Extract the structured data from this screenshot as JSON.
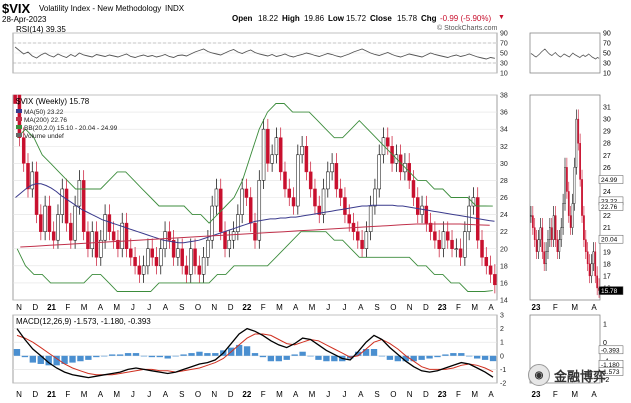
{
  "header": {
    "symbol": "$VIX",
    "name": "Volatility Index - New Methodology",
    "exchange": "INDX",
    "date": "28-Apr-2023",
    "open_label": "Open",
    "open": "18.22",
    "high_label": "High",
    "high": "19.86",
    "low_label": "Low",
    "low": "15.72",
    "close_label": "Close",
    "close": "15.78",
    "chg_label": "Chg",
    "chg": "-0.99 (-5.90%)",
    "credit": "© StockCharts.com"
  },
  "watermark": {
    "text": "金融博弈",
    "logo": "wechat-logo"
  },
  "colors": {
    "down": "#c8102e",
    "up": "#ffffff",
    "ma50": "#3a3a8c",
    "ma200": "#c0304a",
    "bb": "#3c8c3c",
    "hist": "#4a8fd0",
    "macd": "#000000",
    "signal": "#d03020",
    "rsi": "#555555"
  },
  "chart_data": [
    {
      "type": "line",
      "title": "RSI(14) 39.35",
      "series": [
        {
          "name": "RSI(14)",
          "values": [
            62,
            55,
            48,
            52,
            44,
            40,
            46,
            50,
            45,
            42,
            48,
            44,
            41,
            47,
            43,
            50,
            46,
            44,
            42,
            47,
            45,
            43,
            46,
            44,
            42,
            45,
            48,
            43,
            41,
            44,
            46,
            43,
            45,
            42,
            44,
            47,
            43,
            41,
            45,
            46,
            44,
            48,
            52,
            55,
            58,
            53,
            50,
            48,
            46,
            50,
            54,
            57,
            52,
            49,
            53,
            56,
            51,
            48,
            46,
            44,
            47,
            43,
            45,
            48,
            44,
            42,
            45,
            47,
            50,
            48,
            45,
            43,
            46,
            49,
            47,
            44,
            42,
            45,
            48,
            52,
            55,
            58,
            54,
            50,
            47,
            45,
            48,
            51,
            47,
            44,
            42,
            45,
            48,
            46,
            44,
            42,
            46,
            50,
            47,
            45,
            43,
            41,
            44,
            46,
            43,
            45,
            48,
            45,
            42,
            40,
            38,
            41,
            39.35
          ]
        }
      ],
      "ylim": [
        10,
        90
      ],
      "yticks": [
        "90",
        "70",
        "50",
        "30",
        "10"
      ],
      "ref_lines": [
        30,
        70
      ]
    },
    {
      "type": "line",
      "title": "$VIX (Weekly) 15.78",
      "legend": [
        "MA(50) 23.22",
        "MA(200) 22.76",
        "BB(20,2.0) 15.10 - 20.04 - 24.99",
        "Volume undef"
      ],
      "ylim": [
        14,
        38
      ],
      "yticks": [
        "38",
        "36",
        "34",
        "32",
        "30",
        "28",
        "26",
        "24",
        "22",
        "20",
        "18",
        "16",
        "14"
      ],
      "xticks": [
        "N",
        "D",
        "21",
        "F",
        "M",
        "A",
        "M",
        "J",
        "J",
        "A",
        "S",
        "O",
        "N",
        "D",
        "22",
        "F",
        "M",
        "A",
        "M",
        "J",
        "J",
        "A",
        "S",
        "O",
        "N",
        "D",
        "23",
        "F",
        "M",
        "A"
      ],
      "series": [
        {
          "name": "$VIX",
          "values": [
            38,
            33,
            30,
            27,
            29,
            24,
            22,
            25,
            22,
            21,
            24,
            27,
            23,
            21,
            25,
            28,
            22,
            20,
            22,
            19,
            21,
            24,
            22,
            21,
            20,
            23,
            20,
            19,
            18,
            17,
            18,
            20,
            19,
            18,
            20,
            22,
            21,
            19,
            20,
            18,
            17,
            20,
            18,
            17,
            19,
            21,
            25,
            27,
            22,
            20,
            21,
            22,
            24,
            27,
            26,
            23,
            21,
            28,
            34,
            30,
            31,
            33,
            29,
            27,
            26,
            25,
            31,
            32,
            29,
            27,
            25,
            24,
            27,
            29,
            30,
            27,
            26,
            24,
            23,
            22,
            21,
            20,
            22,
            25,
            27,
            31,
            33,
            32,
            30,
            31,
            29,
            30,
            28,
            26,
            24,
            25,
            23,
            22,
            21,
            20,
            22,
            21,
            20,
            20,
            19,
            22,
            25,
            26,
            21,
            19,
            18,
            17,
            15.78
          ]
        },
        {
          "name": "MA(50)",
          "values": [
            26,
            26.5,
            27,
            27.4,
            27.6,
            27.6,
            27.4,
            27.1,
            26.7,
            26.2,
            25.8,
            25.4,
            25.0,
            24.6,
            24.3,
            24.0,
            23.7,
            23.4,
            23.2,
            23.0,
            22.8,
            22.6,
            22.4,
            22.2,
            22.0,
            21.8,
            21.6,
            21.4,
            21.2,
            21.0,
            20.9,
            20.8,
            20.7,
            20.7,
            20.8,
            20.9,
            21.0,
            21.2,
            21.4,
            21.6,
            21.8,
            22.0,
            22.2,
            22.4,
            22.6,
            22.8,
            23.0,
            23.2,
            23.3,
            23.4,
            23.5,
            23.5,
            23.6,
            23.6,
            23.7,
            23.7,
            23.8,
            23.9,
            24.0,
            24.1,
            24.2,
            24.3,
            24.4,
            24.5,
            24.6,
            24.7,
            24.8,
            24.9,
            25.0,
            25.0,
            25.1,
            25.1,
            25.1,
            25.1,
            25.1,
            25.0,
            25.0,
            24.9,
            24.8,
            24.7,
            24.6,
            24.5,
            24.4,
            24.3,
            24.2,
            24.1,
            24.0,
            23.9,
            23.8,
            23.7,
            23.6,
            23.5,
            23.4,
            23.3,
            23.22
          ]
        },
        {
          "name": "MA(200)",
          "values": [
            20.2,
            20.3,
            20.4,
            20.5,
            20.6,
            20.7,
            20.8,
            20.9,
            21.0,
            21.1,
            21.2,
            21.3,
            21.4,
            21.5,
            21.6,
            21.7,
            21.8,
            21.9,
            22.0,
            22.1,
            22.2,
            22.3,
            22.4,
            22.5,
            22.6,
            22.7,
            22.8,
            22.9,
            22.9,
            22.9,
            22.9,
            22.8,
            22.76
          ]
        },
        {
          "name": "BB upper",
          "values": [
            33,
            34,
            33,
            31,
            30,
            29,
            28,
            27,
            27,
            27,
            27,
            28,
            29,
            29,
            28,
            27,
            26,
            25,
            25,
            25,
            25,
            24,
            24,
            23,
            24,
            25,
            26,
            28,
            31,
            34,
            36,
            37,
            37,
            36,
            36,
            36,
            35,
            34,
            33,
            33,
            34,
            35,
            34,
            33,
            32,
            31,
            30,
            29,
            28,
            28,
            27,
            27,
            26,
            26,
            26,
            25,
            25,
            24.99
          ]
        },
        {
          "name": "BB lower",
          "values": [
            20,
            18,
            17,
            17,
            16,
            16,
            16,
            16,
            16,
            17,
            17,
            16,
            15,
            15,
            15,
            15,
            15,
            16,
            16,
            16,
            16,
            16,
            16,
            16,
            17,
            17,
            18,
            18,
            18,
            18,
            18,
            19,
            20,
            21,
            22,
            22,
            22,
            22,
            21,
            21,
            20,
            19,
            19,
            19,
            19,
            19,
            19,
            19,
            18,
            18,
            17,
            17,
            16,
            16,
            15,
            15,
            15,
            15.1
          ]
        }
      ]
    },
    {
      "type": "bar",
      "title": "MACD(12,26,9) -1.573, -1.180, -0.393",
      "ylim": [
        -2,
        3
      ],
      "yticks": [
        "3",
        "2",
        "1",
        "0",
        "-1",
        "-2"
      ],
      "series": [
        {
          "name": "MACD(12,26,9)",
          "values": [
            2.0,
            1.2,
            0.5,
            0.0,
            -0.5,
            -0.9,
            -1.2,
            -1.4,
            -1.5,
            -1.6,
            -1.5,
            -1.4,
            -1.3,
            -1.2,
            -1.0,
            -0.9,
            -1.0,
            -1.1,
            -1.2,
            -1.3,
            -1.2,
            -1.0,
            -0.8,
            -0.6,
            -0.5,
            -0.3,
            0.2,
            0.9,
            1.6,
            2.0,
            1.8,
            1.5,
            1.1,
            0.8,
            0.6,
            0.9,
            1.3,
            1.2,
            0.8,
            0.4,
            0.1,
            -0.2,
            -0.3,
            0.3,
            1.0,
            1.5,
            1.2,
            0.6,
            0.1,
            -0.4,
            -0.8,
            -1.1,
            -1.2,
            -1.1,
            -0.9,
            -0.7,
            -0.5,
            -0.6,
            -0.9,
            -1.2,
            -1.573
          ]
        },
        {
          "name": "signal",
          "values": [
            1.5,
            1.3,
            1.0,
            0.6,
            0.2,
            -0.2,
            -0.6,
            -0.9,
            -1.1,
            -1.3,
            -1.4,
            -1.4,
            -1.4,
            -1.3,
            -1.2,
            -1.1,
            -1.0,
            -1.0,
            -1.1,
            -1.1,
            -1.2,
            -1.1,
            -1.0,
            -0.9,
            -0.7,
            -0.5,
            -0.2,
            0.3,
            0.8,
            1.3,
            1.6,
            1.6,
            1.5,
            1.2,
            0.9,
            0.8,
            1.0,
            1.2,
            1.1,
            0.8,
            0.5,
            0.2,
            -0.1,
            0.0,
            0.5,
            1.0,
            1.2,
            0.9,
            0.5,
            0.0,
            -0.4,
            -0.8,
            -1.0,
            -1.0,
            -1.0,
            -0.9,
            -0.7,
            -0.6,
            -0.7,
            -0.9,
            -1.18
          ]
        },
        {
          "name": "histogram",
          "values": [
            0.5,
            -0.1,
            -0.5,
            -0.6,
            -0.7,
            -0.7,
            -0.6,
            -0.5,
            -0.4,
            -0.3,
            -0.1,
            0.0,
            0.1,
            0.1,
            0.2,
            0.2,
            0.0,
            -0.1,
            -0.1,
            -0.2,
            0.0,
            0.1,
            0.2,
            0.3,
            0.2,
            0.2,
            0.4,
            0.6,
            0.8,
            0.7,
            0.2,
            -0.1,
            -0.4,
            -0.4,
            -0.3,
            0.1,
            0.3,
            0.0,
            -0.3,
            -0.4,
            -0.4,
            -0.4,
            -0.2,
            0.3,
            0.5,
            0.5,
            0.0,
            -0.3,
            -0.4,
            -0.4,
            -0.4,
            -0.3,
            -0.2,
            -0.1,
            0.1,
            0.2,
            0.2,
            0.0,
            -0.2,
            -0.3,
            -0.393
          ]
        }
      ]
    },
    {
      "type": "line",
      "title": "right panel (daily)",
      "rsi_yticks": [
        "90",
        "70",
        "50",
        "30",
        "10"
      ],
      "price_yticks": [
        "31",
        "30",
        "29",
        "28",
        "27",
        "26",
        "25",
        "24",
        "23",
        "22",
        "21",
        "20",
        "19",
        "18",
        "17",
        "16"
      ],
      "price_labels": [
        "24.99",
        "23.22",
        "22.76",
        "20.04",
        "15.78"
      ],
      "macd_yticks": [
        "1",
        "0",
        "-1",
        "-2"
      ],
      "macd_labels": [
        "-0.393",
        "-1.180",
        "-1.573"
      ],
      "xticks": [
        "23",
        "F",
        "M",
        "A"
      ],
      "series": [
        {
          "name": "$VIX",
          "values": [
            22,
            21,
            20,
            19,
            20,
            21,
            19,
            18,
            19,
            20,
            21,
            20,
            22,
            20,
            19,
            20,
            21,
            23,
            26,
            24,
            22,
            21,
            23,
            26,
            30,
            28,
            25,
            22,
            20,
            19,
            18,
            17,
            18,
            19,
            17,
            16,
            15.78
          ]
        }
      ]
    }
  ]
}
